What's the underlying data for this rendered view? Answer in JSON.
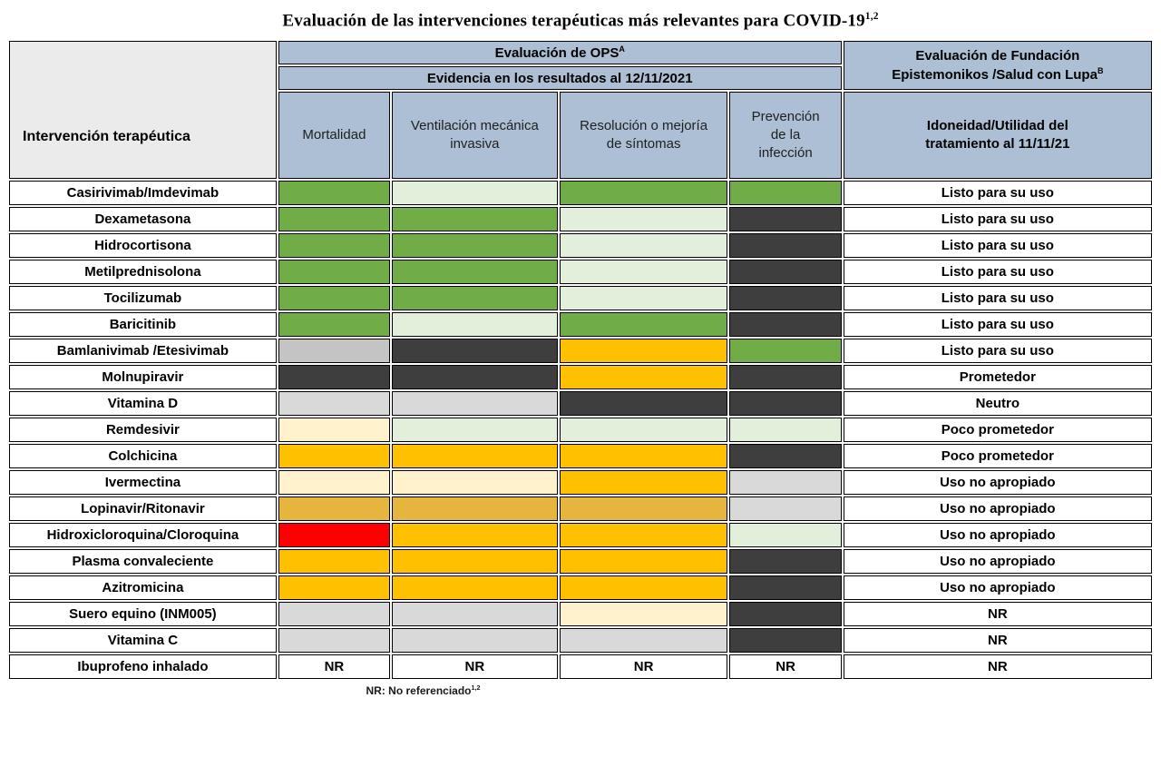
{
  "page_title": "Evaluación de las intervenciones terapéuticas más relevantes para COVID-19",
  "page_title_sup": "1,2",
  "colors": {
    "green": "#70AD47",
    "palegreen": "#E2EFDA",
    "dark": "#3E3E3E",
    "gray": "#D9D9D9",
    "midgray": "#C4C4C4",
    "orange": "#FFC000",
    "gold": "#E6B53D",
    "cream": "#FFF2CC",
    "red": "#FF0000",
    "white": "#FFFFFF",
    "header_blue": "#ACBFD5",
    "header_gray": "#EBEBEB"
  },
  "chart_data": {
    "type": "table",
    "title": "Evaluación de las intervenciones terapéuticas más relevantes para COVID-19",
    "header": {
      "intervention_col": "Intervención terapéutica",
      "ops_title": "Evaluación de OPS",
      "ops_title_sup": "A",
      "ops_subtitle": "Evidencia en los resultados al 12/11/2021",
      "outcome_columns": [
        "Mortalidad",
        "Ventilación mecánica invasiva",
        "Resolución o mejoría de síntomas",
        "Prevención de la infección"
      ],
      "fundacion_title": "Evaluación de Fundación Epistemonikos /Salud con Lupa",
      "fundacion_title_sup": "B",
      "fundacion_subtitle": "Idoneidad/Utilidad del tratamiento al 11/11/21"
    },
    "rows": [
      {
        "name": "Casirivimab/Imdevimab",
        "cells": [
          {
            "color": "green"
          },
          {
            "color": "palegreen"
          },
          {
            "color": "green"
          },
          {
            "color": "green"
          }
        ],
        "verdict": "Listo para su uso"
      },
      {
        "name": "Dexametasona",
        "cells": [
          {
            "color": "green"
          },
          {
            "color": "green"
          },
          {
            "color": "palegreen"
          },
          {
            "color": "dark"
          }
        ],
        "verdict": "Listo para su uso"
      },
      {
        "name": "Hidrocortisona",
        "cells": [
          {
            "color": "green"
          },
          {
            "color": "green"
          },
          {
            "color": "palegreen"
          },
          {
            "color": "dark"
          }
        ],
        "verdict": "Listo para su uso"
      },
      {
        "name": "Metilprednisolona",
        "cells": [
          {
            "color": "green"
          },
          {
            "color": "green"
          },
          {
            "color": "palegreen"
          },
          {
            "color": "dark"
          }
        ],
        "verdict": "Listo para su uso"
      },
      {
        "name": "Tocilizumab",
        "cells": [
          {
            "color": "green"
          },
          {
            "color": "green"
          },
          {
            "color": "palegreen"
          },
          {
            "color": "dark"
          }
        ],
        "verdict": "Listo para su uso"
      },
      {
        "name": "Baricitinib",
        "cells": [
          {
            "color": "green"
          },
          {
            "color": "palegreen"
          },
          {
            "color": "green"
          },
          {
            "color": "dark"
          }
        ],
        "verdict": "Listo para su uso"
      },
      {
        "name": "Bamlanivimab /Etesivimab",
        "cells": [
          {
            "color": "midgray"
          },
          {
            "color": "dark"
          },
          {
            "color": "orange"
          },
          {
            "color": "green"
          }
        ],
        "verdict": "Listo para su uso"
      },
      {
        "name": "Molnupiravir",
        "cells": [
          {
            "color": "dark"
          },
          {
            "color": "dark"
          },
          {
            "color": "orange"
          },
          {
            "color": "dark"
          }
        ],
        "verdict": "Prometedor"
      },
      {
        "name": "Vitamina D",
        "cells": [
          {
            "color": "gray"
          },
          {
            "color": "gray"
          },
          {
            "color": "dark"
          },
          {
            "color": "dark"
          }
        ],
        "verdict": "Neutro"
      },
      {
        "name": "Remdesivir",
        "cells": [
          {
            "color": "cream"
          },
          {
            "color": "palegreen"
          },
          {
            "color": "palegreen"
          },
          {
            "color": "palegreen"
          }
        ],
        "verdict": "Poco prometedor"
      },
      {
        "name": "Colchicina",
        "cells": [
          {
            "color": "orange"
          },
          {
            "color": "orange"
          },
          {
            "color": "orange"
          },
          {
            "color": "dark"
          }
        ],
        "verdict": "Poco prometedor"
      },
      {
        "name": "Ivermectina",
        "cells": [
          {
            "color": "cream"
          },
          {
            "color": "cream"
          },
          {
            "color": "orange"
          },
          {
            "color": "gray"
          }
        ],
        "verdict": "Uso no apropiado"
      },
      {
        "name": "Lopinavir/Ritonavir",
        "cells": [
          {
            "color": "gold"
          },
          {
            "color": "gold"
          },
          {
            "color": "gold"
          },
          {
            "color": "gray"
          }
        ],
        "verdict": "Uso no apropiado"
      },
      {
        "name": "Hidroxicloroquina/Cloroquina",
        "cells": [
          {
            "color": "red"
          },
          {
            "color": "orange"
          },
          {
            "color": "orange"
          },
          {
            "color": "palegreen"
          }
        ],
        "verdict": "Uso no apropiado"
      },
      {
        "name": "Plasma convaleciente",
        "cells": [
          {
            "color": "orange"
          },
          {
            "color": "orange"
          },
          {
            "color": "orange"
          },
          {
            "color": "dark"
          }
        ],
        "verdict": "Uso no apropiado"
      },
      {
        "name": "Azitromicina",
        "cells": [
          {
            "color": "orange"
          },
          {
            "color": "orange"
          },
          {
            "color": "orange"
          },
          {
            "color": "dark"
          }
        ],
        "verdict": "Uso no apropiado"
      },
      {
        "name": "Suero equino (INM005)",
        "cells": [
          {
            "color": "gray"
          },
          {
            "color": "gray"
          },
          {
            "color": "cream"
          },
          {
            "color": "dark"
          }
        ],
        "verdict": "NR"
      },
      {
        "name": "Vitamina C",
        "cells": [
          {
            "color": "gray"
          },
          {
            "color": "gray"
          },
          {
            "color": "gray"
          },
          {
            "color": "dark"
          }
        ],
        "verdict": "NR"
      },
      {
        "name": "Ibuprofeno inhalado",
        "cells": [
          {
            "color": "white",
            "text": "NR"
          },
          {
            "color": "white",
            "text": "NR"
          },
          {
            "color": "white",
            "text": "NR"
          },
          {
            "color": "white",
            "text": "NR"
          }
        ],
        "verdict": "NR"
      }
    ],
    "footnote": "NR: No referenciado",
    "footnote_sup": "1,2"
  }
}
